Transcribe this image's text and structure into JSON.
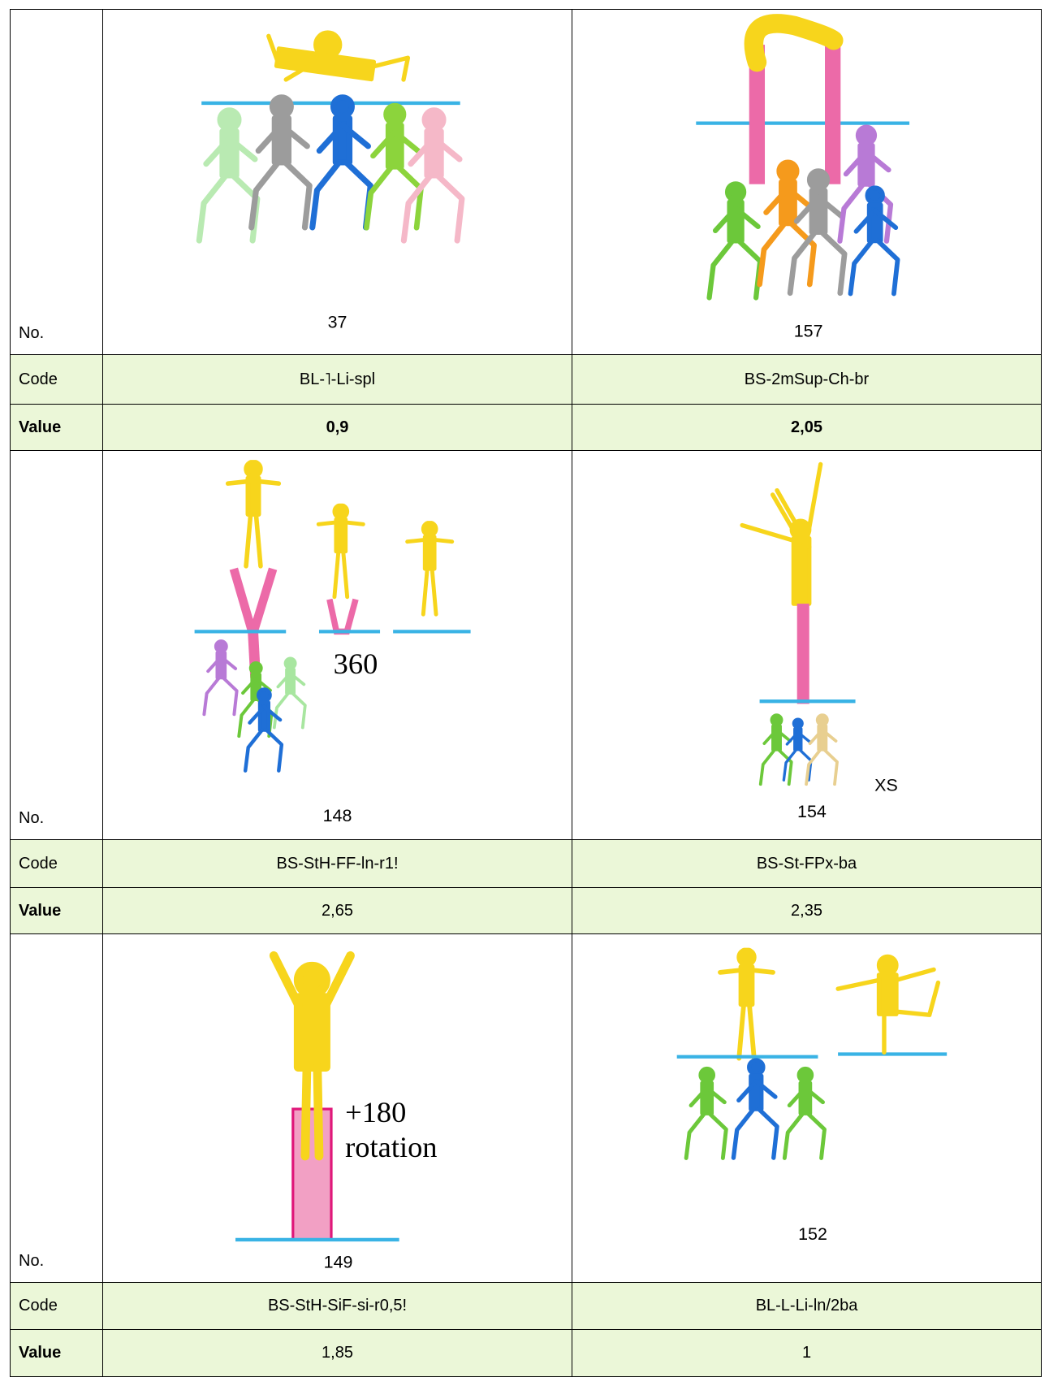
{
  "blocks": [
    {
      "no_label": "No.",
      "code_label": "Code",
      "value_label": "Value",
      "cells": [
        {
          "number": 37,
          "code": "BL-˥-Li-spl",
          "value": "0,9"
        },
        {
          "number": 157,
          "code": "BS-2mSup-Ch-br",
          "value": "2,05"
        }
      ]
    },
    {
      "no_label": "No.",
      "code_label": "Code",
      "value_label": "Value",
      "cells": [
        {
          "number": 148,
          "code": "BS-StH-FF-ln-r1!",
          "value": "2,65",
          "annotation": "360"
        },
        {
          "number": 154,
          "code": "BS-St-FPx-ba",
          "value": "2,35",
          "annotation": "XS"
        }
      ]
    },
    {
      "no_label": "No.",
      "code_label": "Code",
      "value_label": "Value",
      "cells": [
        {
          "number": 149,
          "code": "BS-StH-SiF-si-r0,5!",
          "value": "1,85",
          "annotations": [
            "+180",
            "rotation"
          ]
        },
        {
          "number": 152,
          "code": "BL-L-Li-ln/2ba",
          "value": "1"
        }
      ]
    }
  ]
}
